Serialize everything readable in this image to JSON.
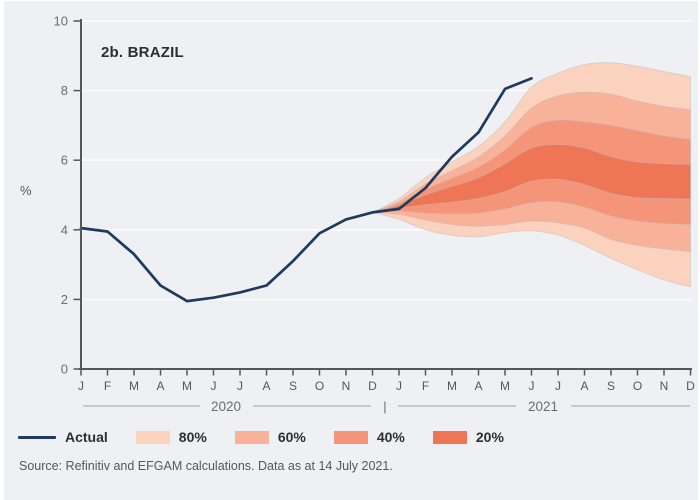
{
  "title": "2b. BRAZIL",
  "source": "Source: Refinitiv and EFGAM calculations. Data as at 14 July 2021.",
  "colors": {
    "background": "#eef0f3",
    "gridline": "#fbfcfd",
    "axis": "#55565a",
    "tick_label": "#6b6d70",
    "actual_line": "#1e3a5c",
    "band_80": "#fbd2be",
    "band_60": "#f8b299",
    "band_40": "#f4957a",
    "band_20": "#ef7557",
    "band_edge": "#c0bcb9"
  },
  "y_axis": {
    "label": "%",
    "ticks": [
      "0",
      "2",
      "4",
      "6",
      "8",
      "10"
    ],
    "tick_values": [
      0,
      2,
      4,
      6,
      8,
      10
    ],
    "min": 0,
    "max": 10
  },
  "x_axis": {
    "months": [
      "J",
      "F",
      "M",
      "A",
      "M",
      "J",
      "J",
      "A",
      "S",
      "O",
      "N",
      "D",
      "J",
      "F",
      "M",
      "A",
      "M",
      "J",
      "J",
      "A",
      "S",
      "O",
      "N",
      "D"
    ],
    "year_groups": [
      {
        "label": "2020"
      },
      {
        "label": "2021"
      }
    ],
    "divider": "|"
  },
  "legend": {
    "items": [
      {
        "label": "Actual",
        "swatch": "line",
        "color": "#1e3a5c"
      },
      {
        "label": "80%",
        "swatch": "box",
        "color": "#fbd2be"
      },
      {
        "label": "60%",
        "swatch": "box",
        "color": "#f8b299"
      },
      {
        "label": "40%",
        "swatch": "box",
        "color": "#f4957a"
      },
      {
        "label": "20%",
        "swatch": "box",
        "color": "#ef7557"
      }
    ]
  },
  "chart_data": {
    "type": "line+area-fan",
    "title": "2b. BRAZIL",
    "xlabel": "",
    "ylabel": "%",
    "ylim": [
      0,
      10
    ],
    "grid": "horizontal",
    "legend_position": "bottom",
    "x_categories": [
      "Jan-20",
      "Feb-20",
      "Mar-20",
      "Apr-20",
      "May-20",
      "Jun-20",
      "Jul-20",
      "Aug-20",
      "Sep-20",
      "Oct-20",
      "Nov-20",
      "Dec-20",
      "Jan-21",
      "Feb-21",
      "Mar-21",
      "Apr-21",
      "May-21",
      "Jun-21",
      "Jul-21",
      "Aug-21",
      "Sep-21",
      "Oct-21",
      "Nov-21",
      "Dec-21"
    ],
    "series": [
      {
        "name": "Actual",
        "type": "line",
        "color": "#1e3a5c",
        "x": [
          "Jan-20",
          "Feb-20",
          "Mar-20",
          "Apr-20",
          "May-20",
          "Jun-20",
          "Jul-20",
          "Aug-20",
          "Sep-20",
          "Oct-20",
          "Nov-20",
          "Dec-20",
          "Jan-21",
          "Feb-21",
          "Mar-21",
          "Apr-21",
          "May-21",
          "Jun-21"
        ],
        "values": [
          4.05,
          3.95,
          3.3,
          2.4,
          1.95,
          2.05,
          2.2,
          2.4,
          3.1,
          3.9,
          4.3,
          4.5,
          4.6,
          5.2,
          6.1,
          6.8,
          8.05,
          8.35
        ]
      }
    ],
    "fan": {
      "start_index": 11,
      "x": [
        "Dec-20",
        "Jan-21",
        "Feb-21",
        "Mar-21",
        "Apr-21",
        "May-21",
        "Jun-21",
        "Jul-21",
        "Aug-21",
        "Sep-21",
        "Oct-21",
        "Nov-21",
        "Dec-21"
      ],
      "bands": [
        {
          "label": "80%",
          "color": "#fbd2be",
          "upper": [
            4.5,
            4.9,
            5.5,
            5.95,
            6.4,
            7.1,
            8.1,
            8.5,
            8.75,
            8.8,
            8.7,
            8.55,
            8.4
          ],
          "lower": [
            4.5,
            4.3,
            4.0,
            3.84,
            3.8,
            3.92,
            3.97,
            3.85,
            3.55,
            3.18,
            2.85,
            2.56,
            2.36
          ]
        },
        {
          "label": "60%",
          "color": "#f8b299",
          "upper": [
            4.5,
            4.82,
            5.32,
            5.7,
            6.1,
            6.7,
            7.5,
            7.85,
            7.95,
            7.9,
            7.7,
            7.55,
            7.45
          ],
          "lower": [
            4.5,
            4.44,
            4.28,
            4.15,
            4.1,
            4.15,
            4.25,
            4.2,
            4.05,
            3.72,
            3.55,
            3.45,
            3.37
          ]
        },
        {
          "label": "40%",
          "color": "#f4957a",
          "upper": [
            4.5,
            4.76,
            5.16,
            5.48,
            5.8,
            6.3,
            6.95,
            7.15,
            7.1,
            7.0,
            6.85,
            6.7,
            6.6
          ],
          "lower": [
            4.5,
            4.54,
            4.48,
            4.46,
            4.48,
            4.6,
            4.78,
            4.8,
            4.65,
            4.4,
            4.25,
            4.18,
            4.15
          ]
        },
        {
          "label": "20%",
          "color": "#ef7557",
          "upper": [
            4.5,
            4.7,
            5.0,
            5.25,
            5.5,
            5.9,
            6.35,
            6.45,
            6.35,
            6.1,
            5.95,
            5.9,
            5.88
          ],
          "lower": [
            4.5,
            4.62,
            4.72,
            4.8,
            4.9,
            5.1,
            5.4,
            5.45,
            5.3,
            5.05,
            4.92,
            4.9,
            4.88
          ]
        }
      ]
    }
  }
}
